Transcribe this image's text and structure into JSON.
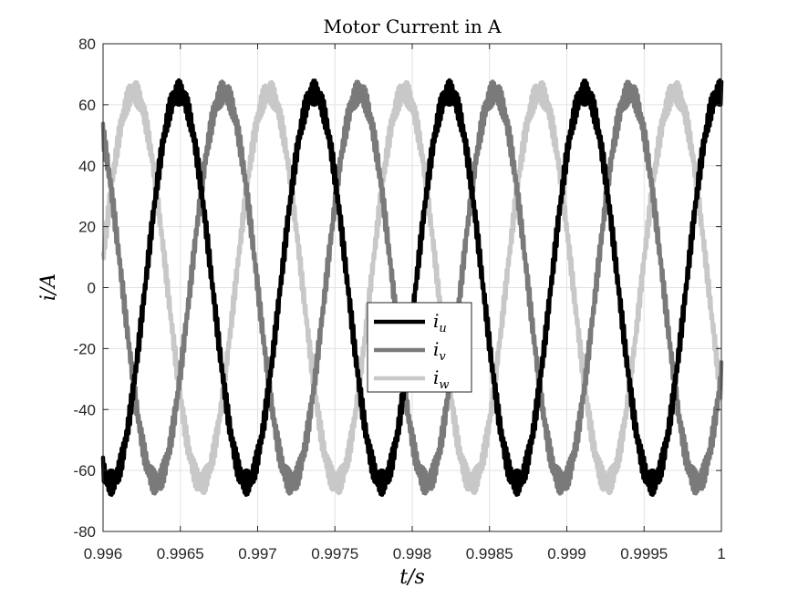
{
  "chart_data": {
    "type": "line",
    "title": "Motor Current in A",
    "xlabel": "t/s",
    "ylabel": "i/A",
    "xlim": [
      0.996,
      1.0
    ],
    "ylim": [
      -80,
      80
    ],
    "xticks": [
      "0.996",
      "0.9965",
      "0.997",
      "0.9975",
      "0.998",
      "0.9985",
      "0.999",
      "0.9995",
      "1"
    ],
    "yticks": [
      "80",
      "60",
      "40",
      "20",
      "0",
      "-20",
      "-40",
      "-60",
      "-80"
    ],
    "grid": true,
    "legend_position": "center",
    "waveform": {
      "amplitude": 64,
      "period_s": 0.000875,
      "ripple_amplitude": 4,
      "sample_step_s": 5e-06
    },
    "series": [
      {
        "name": "i",
        "subscript": "u",
        "color": "#000000",
        "phase_deg": -111.7
      },
      {
        "name": "i",
        "subscript": "v",
        "color": "#7a7a7a",
        "phase_deg": 128.3
      },
      {
        "name": "i",
        "subscript": "w",
        "color": "#c8c8c8",
        "phase_deg": 8.3
      }
    ]
  }
}
